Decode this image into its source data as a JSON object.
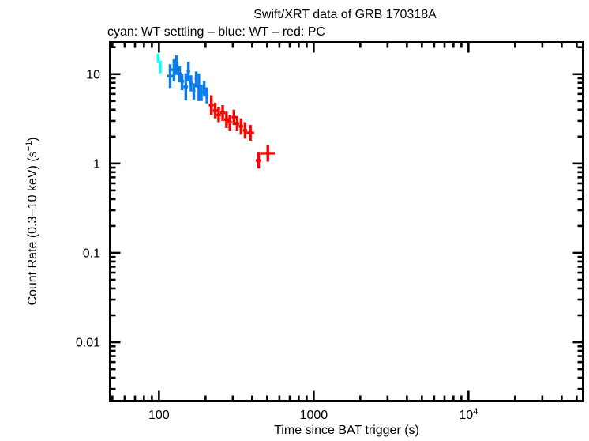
{
  "window": {
    "background": "#ffffff",
    "foreground": "#000000"
  },
  "chart_data": {
    "type": "scatter",
    "title": "Swift/XRT data of GRB 170318A",
    "subtitle": "cyan: WT settling – blue: WT – red: PC",
    "xlabel": "Time since BAT trigger (s)",
    "ylabel": {
      "pre": "Count Rate (0.3−10 keV) (s",
      "sup": "−1",
      "post": ")"
    },
    "x_scale": "log",
    "y_scale": "log",
    "xlim": [
      47.5,
      56000
    ],
    "ylim": [
      0.00213,
      23.4
    ],
    "grid": false,
    "legend_position": "subtitle-text",
    "marker": "cross-with-error-bars",
    "x_major_ticks": [
      {
        "value": 100,
        "label": "100"
      },
      {
        "value": 1000,
        "label": "1000"
      },
      {
        "value": 10000,
        "label": "10",
        "sup": "4"
      }
    ],
    "y_major_ticks": [
      {
        "value": 10,
        "label": "10"
      },
      {
        "value": 1,
        "label": "1"
      },
      {
        "value": 0.1,
        "label": "0.1"
      },
      {
        "value": 0.01,
        "label": "0.01"
      }
    ],
    "series": [
      {
        "name": "WT settling",
        "color": "#00ffff",
        "points": [
          {
            "t": 99,
            "terr": 2,
            "r": 15.2,
            "rhi": 17.0,
            "rlo": 13.3
          },
          {
            "t": 102,
            "terr": 2,
            "r": 12.3,
            "rhi": 14.1,
            "rlo": 10.2
          }
        ]
      },
      {
        "name": "WT",
        "color": "#0b7ceb",
        "points": [
          {
            "t": 118,
            "terr": 5,
            "r": 9.5,
            "rhi": 12.9,
            "rlo": 7.0
          },
          {
            "t": 125,
            "terr": 5,
            "r": 11.2,
            "rhi": 14.7,
            "rlo": 8.3
          },
          {
            "t": 130,
            "terr": 4,
            "r": 12.9,
            "rhi": 16.3,
            "rlo": 9.8
          },
          {
            "t": 136,
            "terr": 4,
            "r": 10.1,
            "rhi": 12.2,
            "rlo": 8.1
          },
          {
            "t": 141,
            "terr": 4,
            "r": 8.3,
            "rhi": 10.0,
            "rlo": 6.6
          },
          {
            "t": 149,
            "terr": 5,
            "r": 7.2,
            "rhi": 10.2,
            "rlo": 5.1
          },
          {
            "t": 155,
            "terr": 4,
            "r": 10.8,
            "rhi": 13.8,
            "rlo": 8.3
          },
          {
            "t": 161,
            "terr": 4,
            "r": 8.0,
            "rhi": 9.7,
            "rlo": 6.4
          },
          {
            "t": 168,
            "terr": 4,
            "r": 6.5,
            "rhi": 7.9,
            "rlo": 5.2
          },
          {
            "t": 174,
            "terr": 4,
            "r": 8.9,
            "rhi": 10.7,
            "rlo": 7.1
          },
          {
            "t": 181,
            "terr": 4,
            "r": 7.2,
            "rhi": 10.2,
            "rlo": 5.0
          },
          {
            "t": 188,
            "terr": 4,
            "r": 6.3,
            "rhi": 7.6,
            "rlo": 5.0
          },
          {
            "t": 196,
            "terr": 4,
            "r": 7.0,
            "rhi": 8.4,
            "rlo": 5.6
          },
          {
            "t": 204,
            "terr": 5,
            "r": 5.9,
            "rhi": 7.1,
            "rlo": 4.7
          }
        ]
      },
      {
        "name": "PC",
        "color": "#ff0000",
        "points": [
          {
            "t": 218,
            "terr": 8,
            "r": 4.5,
            "rhi": 5.8,
            "rlo": 3.5
          },
          {
            "t": 231,
            "terr": 8,
            "r": 3.9,
            "rhi": 4.8,
            "rlo": 3.2
          },
          {
            "t": 243,
            "terr": 8,
            "r": 3.5,
            "rhi": 4.3,
            "rlo": 2.9
          },
          {
            "t": 258,
            "terr": 9,
            "r": 3.7,
            "rhi": 4.5,
            "rlo": 3.0
          },
          {
            "t": 273,
            "terr": 9,
            "r": 3.1,
            "rhi": 3.8,
            "rlo": 2.5
          },
          {
            "t": 287,
            "terr": 9,
            "r": 2.9,
            "rhi": 3.5,
            "rlo": 2.3
          },
          {
            "t": 305,
            "terr": 10,
            "r": 3.3,
            "rhi": 4.0,
            "rlo": 2.7
          },
          {
            "t": 320,
            "terr": 10,
            "r": 2.8,
            "rhi": 3.4,
            "rlo": 2.3
          },
          {
            "t": 339,
            "terr": 11,
            "r": 2.6,
            "rhi": 3.2,
            "rlo": 2.1
          },
          {
            "t": 360,
            "terr": 12,
            "r": 2.35,
            "rhi": 2.9,
            "rlo": 1.9
          },
          {
            "t": 390,
            "terr": 22,
            "r": 2.2,
            "rhi": 2.7,
            "rlo": 1.8
          },
          {
            "t": 440,
            "terr": 18,
            "r": 1.08,
            "rhi": 1.35,
            "rlo": 0.88
          },
          {
            "t": 505,
            "terr": 55,
            "r": 1.3,
            "rhi": 1.6,
            "rlo": 1.05
          }
        ]
      }
    ]
  }
}
